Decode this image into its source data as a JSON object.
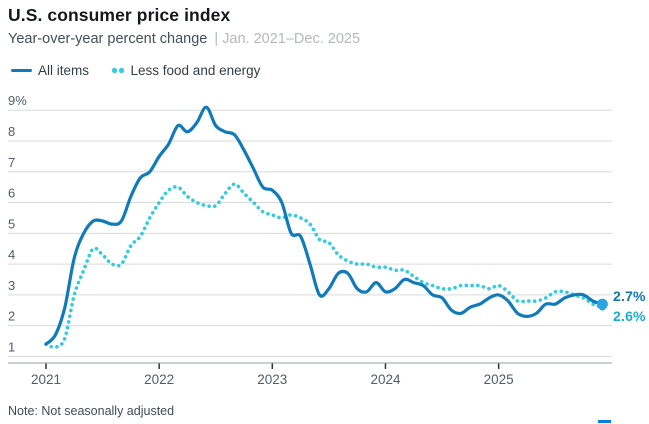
{
  "chart_data": {
    "type": "line",
    "title": "U.S. consumer price index",
    "subtitle": "Year-over-year percent change",
    "date_range_display": "| Jan. 2021–Dec. 2025",
    "note": "Note: Not seasonally adjusted",
    "ylim": [
      1,
      9
    ],
    "grid": true,
    "legend_position": "top-left",
    "x_start": "2021-01",
    "x_end": "2025-12",
    "x_ticks": [
      {
        "label": "2021",
        "month_index": 0
      },
      {
        "label": "2022",
        "month_index": 12
      },
      {
        "label": "2023",
        "month_index": 24
      },
      {
        "label": "2024",
        "month_index": 36
      },
      {
        "label": "2025",
        "month_index": 48
      }
    ],
    "y_ticks": [
      {
        "label": "9%",
        "value": 9
      },
      {
        "label": "8",
        "value": 8
      },
      {
        "label": "7",
        "value": 7
      },
      {
        "label": "6",
        "value": 6
      },
      {
        "label": "5",
        "value": 5
      },
      {
        "label": "4",
        "value": 4
      },
      {
        "label": "3",
        "value": 3
      },
      {
        "label": "2",
        "value": 2
      },
      {
        "label": "1",
        "value": 1
      }
    ],
    "colors": {
      "grid": "#d9dadb",
      "axis_line": "#9aa1a7",
      "tick": "#2e3538",
      "axis_text": "#505e68"
    },
    "series": [
      {
        "name": "All items",
        "style": "solid",
        "color": "#117abb",
        "end_dot_color": "#2ba6df",
        "end_label": "2.7%",
        "end_label_color": "#0f76b2",
        "values": [
          1.4,
          1.7,
          2.6,
          4.2,
          5.0,
          5.4,
          5.4,
          5.3,
          5.4,
          6.2,
          6.8,
          7.0,
          7.5,
          7.9,
          8.5,
          8.3,
          8.6,
          9.1,
          8.5,
          8.3,
          8.2,
          7.7,
          7.1,
          6.5,
          6.4,
          6.0,
          5.0,
          4.9,
          4.0,
          3.0,
          3.2,
          3.7,
          3.7,
          3.2,
          3.1,
          3.4,
          3.1,
          3.2,
          3.5,
          3.4,
          3.3,
          3.0,
          2.9,
          2.5,
          2.4,
          2.6,
          2.7,
          2.9,
          3.0,
          2.8,
          2.4,
          2.3,
          2.4,
          2.7,
          2.7,
          2.9,
          3.0,
          3.0,
          2.8,
          2.7
        ]
      },
      {
        "name": "Less food and energy",
        "style": "dotted",
        "color": "#33cbe0",
        "end_dot_color": "#1fb9d6",
        "end_label": "2.6%",
        "end_label_color": "#16b0cf",
        "values": [
          1.4,
          1.3,
          1.6,
          3.0,
          3.8,
          4.5,
          4.3,
          4.0,
          4.0,
          4.6,
          4.9,
          5.5,
          6.0,
          6.4,
          6.5,
          6.2,
          6.0,
          5.9,
          5.9,
          6.3,
          6.6,
          6.3,
          6.0,
          5.7,
          5.6,
          5.5,
          5.6,
          5.5,
          5.3,
          4.8,
          4.7,
          4.3,
          4.1,
          4.0,
          4.0,
          3.9,
          3.9,
          3.8,
          3.8,
          3.6,
          3.4,
          3.3,
          3.2,
          3.2,
          3.3,
          3.3,
          3.3,
          3.2,
          3.3,
          3.1,
          2.8,
          2.8,
          2.8,
          2.9,
          3.1,
          3.1,
          3.0,
          2.9,
          2.7,
          2.6
        ]
      }
    ],
    "source_bar_color": "#0b7fe0"
  }
}
